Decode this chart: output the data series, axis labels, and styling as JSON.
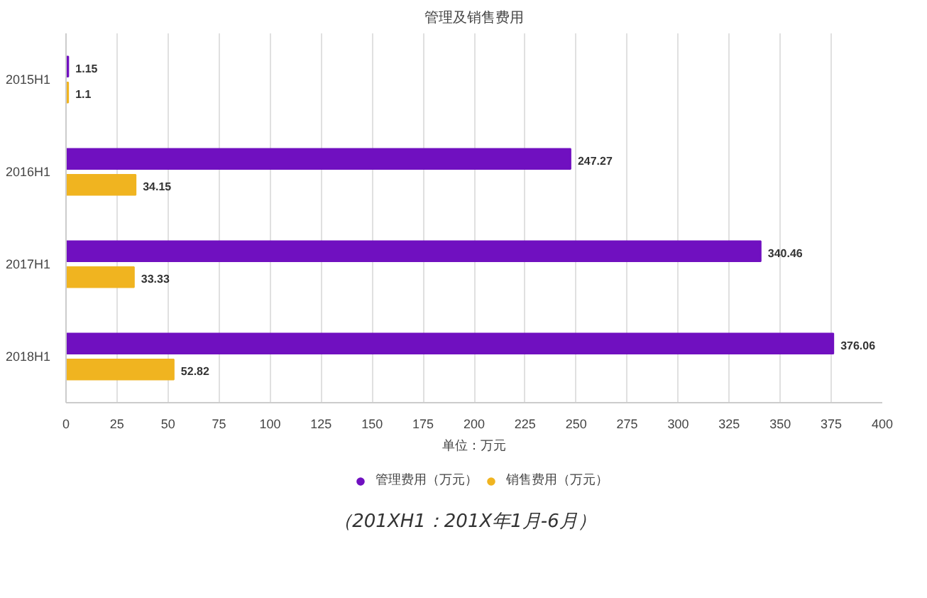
{
  "chart_data": {
    "type": "bar",
    "orientation": "horizontal",
    "title": "管理及销售费用",
    "xlabel": "单位：万元",
    "categories": [
      "2015H1",
      "2016H1",
      "2017H1",
      "2018H1"
    ],
    "series": [
      {
        "name": "管理费用（万元）",
        "color": "#7010c0",
        "values": [
          1.15,
          247.27,
          340.46,
          376.06
        ]
      },
      {
        "name": "销售费用（万元）",
        "color": "#f0b420",
        "values": [
          1.1,
          34.15,
          33.33,
          52.82
        ]
      }
    ],
    "xlim": [
      0,
      400
    ],
    "xticks": [
      0,
      25,
      50,
      75,
      100,
      125,
      150,
      175,
      200,
      225,
      250,
      275,
      300,
      325,
      350,
      375,
      400
    ],
    "grid": "x",
    "legend": "bottom",
    "data_labels": true,
    "annotations": [
      "（201XH1：201X年1月-6月）"
    ]
  }
}
